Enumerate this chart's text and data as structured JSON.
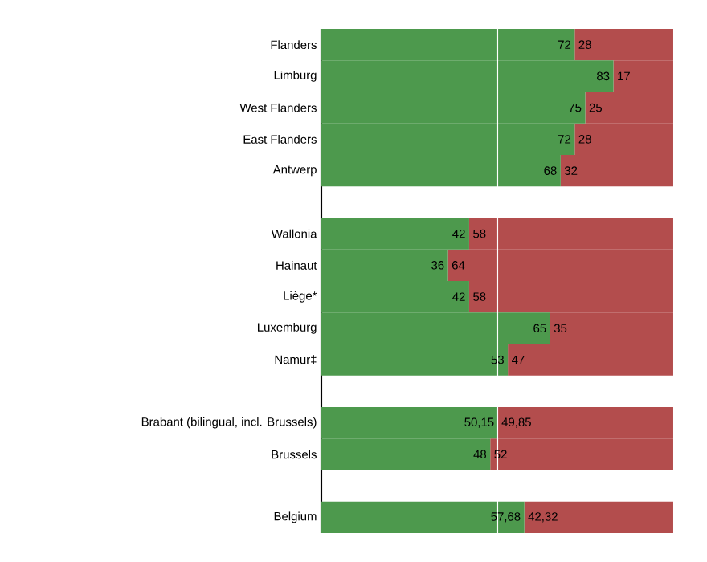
{
  "chart_data": {
    "type": "bar",
    "orientation": "horizontal",
    "stacked": true,
    "tick_labels": "y",
    "xlim": [
      0,
      100
    ],
    "categories": [
      "Flanders",
      "Limburg",
      "West Flanders",
      "East Flanders",
      "Antwerp",
      null,
      "Wallonia",
      "Hainaut",
      "Liège*",
      "Luxemburg",
      "Namur‡",
      null,
      "Brabant (bilingual, incl. Brussels)",
      "Brussels",
      null,
      "Belgium"
    ],
    "series": [
      {
        "color": "#4d994d",
        "values": [
          72,
          83,
          75,
          72,
          68,
          null,
          42,
          36,
          42,
          65,
          53,
          null,
          50.15,
          48,
          null,
          57.68
        ],
        "value_labels": [
          "72",
          "83",
          "75",
          "72",
          "68",
          null,
          "42",
          "36",
          "42",
          "65",
          "53",
          null,
          "50,15",
          "48",
          null,
          "57,68"
        ]
      },
      {
        "color": "#b34d4d",
        "values": [
          28,
          17,
          25,
          28,
          32,
          null,
          58,
          64,
          58,
          35,
          47,
          null,
          49.85,
          52,
          null,
          42.32
        ],
        "value_labels": [
          "28",
          "17",
          "25",
          "28",
          "32",
          null,
          "58",
          "64",
          "58",
          "35",
          "47",
          null,
          "49,85",
          "52",
          null,
          "42,32"
        ]
      }
    ],
    "ref_lines": [
      {
        "axis": "x",
        "value": 50,
        "color": "#ffffff"
      }
    ]
  }
}
